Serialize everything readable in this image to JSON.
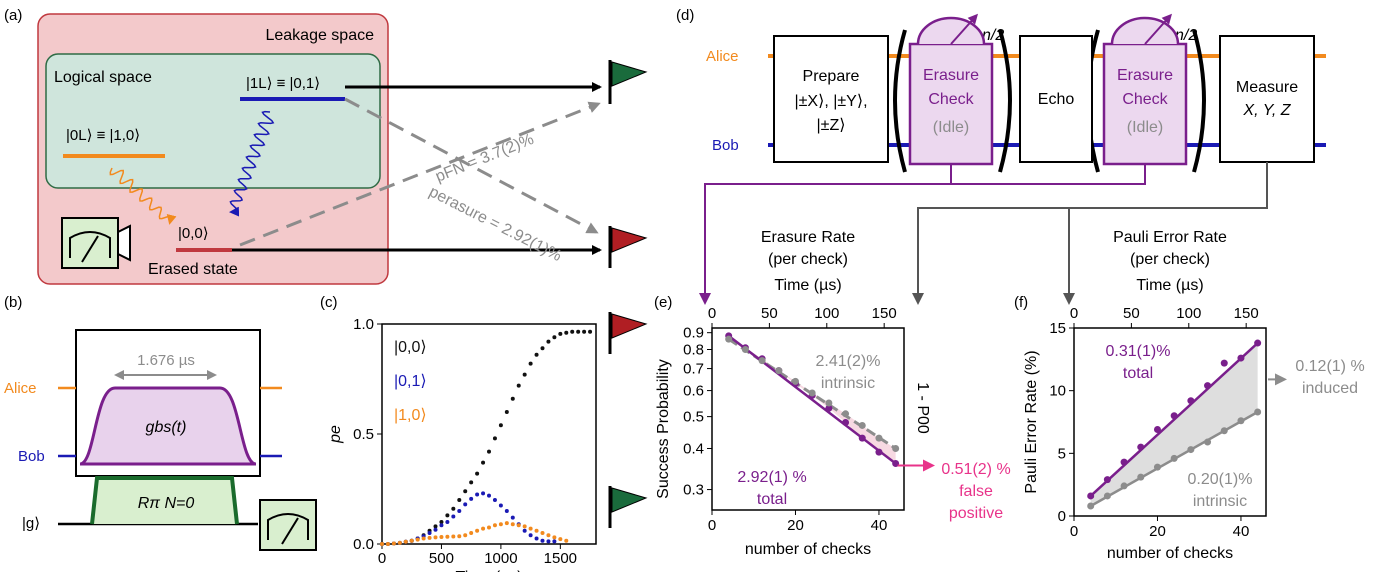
{
  "panel_labels": {
    "a": "(a)",
    "b": "(b)",
    "c": "(c)",
    "d": "(d)",
    "e": "(e)",
    "f": "(f)"
  },
  "colors": {
    "alice": "#f28a1e",
    "bob": "#1a1ab4",
    "purple": "#7a1f8c",
    "gray": "#8c8c8c",
    "red_flag": "#b01e23",
    "green_flag": "#1a6b3c",
    "pink": "#e8338a",
    "leak_bg": "#f3c9cb",
    "leak_border": "#c0393f",
    "logic_bg": "#cfe5dc",
    "logic_border": "#2f6b45",
    "green_box": "#d9efcf"
  },
  "panel_a": {
    "leakage_label": "Leakage space",
    "logical_label": "Logical space",
    "state_1L": "|1L⟩ ≡ |0,1⟩",
    "state_0L": "|0L⟩ ≡ |1,0⟩",
    "state_00": "|0,0⟩",
    "erased_label": "Erased state",
    "p_fn": "pFN = 3.7(2)%",
    "p_erasure": "perasure = 2.92(1)%"
  },
  "panel_b": {
    "duration": "1.676 µs",
    "alice": "Alice",
    "bob": "Bob",
    "gbs": "gbs(t)",
    "rpi": "Rπ N=0",
    "ground": "|g⟩"
  },
  "panel_d": {
    "alice": "Alice",
    "bob": "Bob",
    "prepare": [
      "Prepare",
      "|±X⟩, |±Y⟩,",
      "|±Z⟩"
    ],
    "erasure_check": [
      "Erasure",
      "Check",
      "(Idle)"
    ],
    "echo": "Echo",
    "measure": [
      "Measure",
      "X, Y, Z"
    ],
    "n_half": "n/2"
  },
  "chart_data": [
    {
      "id": "c",
      "type": "scatter",
      "xlabel": "Time (ns)",
      "ylabel": "pe",
      "xlim": [
        0,
        1800
      ],
      "ylim": [
        0,
        1
      ],
      "xticks": [
        0,
        500,
        1000,
        1500
      ],
      "yticks": [
        0,
        0.5,
        1
      ],
      "ytick_labels": [
        "0.0",
        "0.5",
        "1.0"
      ],
      "series": [
        {
          "name": "|0,0⟩",
          "color": "#111111",
          "points": [
            [
              0,
              0.0
            ],
            [
              50,
              0.0
            ],
            [
              100,
              0.002
            ],
            [
              150,
              0.005
            ],
            [
              200,
              0.01
            ],
            [
              250,
              0.015
            ],
            [
              300,
              0.025
            ],
            [
              350,
              0.04
            ],
            [
              400,
              0.06
            ],
            [
              450,
              0.08
            ],
            [
              500,
              0.1
            ],
            [
              550,
              0.13
            ],
            [
              600,
              0.16
            ],
            [
              650,
              0.2
            ],
            [
              700,
              0.24
            ],
            [
              750,
              0.28
            ],
            [
              800,
              0.32
            ],
            [
              850,
              0.37
            ],
            [
              900,
              0.42
            ],
            [
              950,
              0.48
            ],
            [
              1000,
              0.54
            ],
            [
              1050,
              0.6
            ],
            [
              1100,
              0.66
            ],
            [
              1150,
              0.72
            ],
            [
              1200,
              0.77
            ],
            [
              1250,
              0.82
            ],
            [
              1300,
              0.86
            ],
            [
              1350,
              0.89
            ],
            [
              1400,
              0.92
            ],
            [
              1450,
              0.94
            ],
            [
              1500,
              0.955
            ],
            [
              1550,
              0.96
            ],
            [
              1600,
              0.965
            ],
            [
              1650,
              0.965
            ],
            [
              1700,
              0.965
            ],
            [
              1750,
              0.965
            ]
          ]
        },
        {
          "name": "|0,1⟩",
          "color": "#1a1ab4",
          "points": [
            [
              0,
              0.0
            ],
            [
              50,
              0.0
            ],
            [
              100,
              0.002
            ],
            [
              150,
              0.005
            ],
            [
              200,
              0.01
            ],
            [
              250,
              0.015
            ],
            [
              300,
              0.025
            ],
            [
              350,
              0.035
            ],
            [
              400,
              0.05
            ],
            [
              450,
              0.065
            ],
            [
              500,
              0.085
            ],
            [
              550,
              0.1
            ],
            [
              600,
              0.125
            ],
            [
              650,
              0.15
            ],
            [
              700,
              0.18
            ],
            [
              750,
              0.205
            ],
            [
              800,
              0.225
            ],
            [
              850,
              0.23
            ],
            [
              900,
              0.22
            ],
            [
              950,
              0.2
            ],
            [
              1000,
              0.175
            ],
            [
              1050,
              0.15
            ],
            [
              1100,
              0.12
            ],
            [
              1150,
              0.09
            ],
            [
              1200,
              0.06
            ],
            [
              1250,
              0.04
            ],
            [
              1300,
              0.025
            ],
            [
              1350,
              0.015
            ],
            [
              1400,
              0.012
            ],
            [
              1450,
              0.012
            ]
          ]
        },
        {
          "name": "|1,0⟩",
          "color": "#f28a1e",
          "points": [
            [
              0,
              0.0
            ],
            [
              50,
              0.0
            ],
            [
              100,
              0.002
            ],
            [
              150,
              0.005
            ],
            [
              200,
              0.01
            ],
            [
              250,
              0.015
            ],
            [
              300,
              0.02
            ],
            [
              350,
              0.025
            ],
            [
              400,
              0.028
            ],
            [
              450,
              0.03
            ],
            [
              500,
              0.032
            ],
            [
              550,
              0.033
            ],
            [
              600,
              0.034
            ],
            [
              650,
              0.035
            ],
            [
              700,
              0.04
            ],
            [
              750,
              0.05
            ],
            [
              800,
              0.06
            ],
            [
              850,
              0.07
            ],
            [
              900,
              0.075
            ],
            [
              950,
              0.085
            ],
            [
              1000,
              0.09
            ],
            [
              1050,
              0.095
            ],
            [
              1100,
              0.09
            ],
            [
              1150,
              0.085
            ],
            [
              1200,
              0.08
            ],
            [
              1250,
              0.07
            ],
            [
              1300,
              0.06
            ],
            [
              1350,
              0.05
            ],
            [
              1400,
              0.04
            ],
            [
              1450,
              0.03
            ],
            [
              1500,
              0.022
            ],
            [
              1550,
              0.015
            ]
          ]
        }
      ]
    },
    {
      "id": "e",
      "type": "scatter",
      "yscale": "log",
      "title": "Erasure Rate",
      "subtitle": "(per check)",
      "xlabel": "number of checks",
      "ylabel": "Success Probability",
      "x2label": "Time (µs)",
      "y2label": "1 - P00",
      "xlim": [
        0,
        46
      ],
      "ylim": [
        0.26,
        0.93
      ],
      "xticks": [
        0,
        20,
        40
      ],
      "x2ticks": [
        0,
        50,
        100,
        150
      ],
      "yticks": [
        0.3,
        0.4,
        0.5,
        0.6,
        0.7,
        0.8,
        0.9
      ],
      "series": [
        {
          "name": "total",
          "color": "#7a1f8c",
          "x": [
            4,
            8,
            12,
            16,
            20,
            24,
            28,
            32,
            36,
            40,
            44
          ],
          "y": [
            0.88,
            0.81,
            0.75,
            0.69,
            0.63,
            0.58,
            0.53,
            0.48,
            0.43,
            0.39,
            0.36
          ]
        },
        {
          "name": "intrinsic",
          "color": "#8c8c8c",
          "x": [
            4,
            8,
            12,
            16,
            20,
            24,
            28,
            32,
            36,
            40,
            44
          ],
          "y": [
            0.86,
            0.8,
            0.74,
            0.69,
            0.64,
            0.59,
            0.55,
            0.51,
            0.47,
            0.43,
            0.4
          ]
        }
      ],
      "annotations": {
        "intrinsic": [
          "2.41(2)%",
          "intrinsic"
        ],
        "total": [
          "2.92(1) %",
          "total"
        ],
        "false_positive": [
          "0.51(2) %",
          "false",
          "positive"
        ]
      }
    },
    {
      "id": "f",
      "type": "scatter",
      "title": "Pauli Error Rate",
      "subtitle": "(per check)",
      "xlabel": "number of checks",
      "ylabel": "Pauli Error Rate (%)",
      "x2label": "Time (µs)",
      "xlim": [
        0,
        46
      ],
      "ylim": [
        0,
        15
      ],
      "xticks": [
        0,
        20,
        40
      ],
      "x2ticks": [
        0,
        50,
        100,
        150
      ],
      "yticks": [
        0,
        5,
        10,
        15
      ],
      "series": [
        {
          "name": "total",
          "color": "#7a1f8c",
          "x": [
            4,
            8,
            12,
            16,
            20,
            24,
            28,
            32,
            36,
            40,
            44
          ],
          "y": [
            1.6,
            2.9,
            4.3,
            5.5,
            6.9,
            8.0,
            9.2,
            10.4,
            12.2,
            12.6,
            13.8
          ]
        },
        {
          "name": "intrinsic",
          "color": "#8c8c8c",
          "x": [
            4,
            8,
            12,
            16,
            20,
            24,
            28,
            32,
            36,
            40,
            44
          ],
          "y": [
            0.8,
            1.6,
            2.4,
            3.1,
            3.9,
            4.6,
            5.3,
            5.9,
            6.8,
            7.6,
            8.3
          ]
        }
      ],
      "annotations": {
        "total": [
          "0.31(1)%",
          "total"
        ],
        "intrinsic": [
          "0.20(1)%",
          "intrinsic"
        ],
        "induced": [
          "0.12(1) %",
          "induced"
        ]
      }
    }
  ]
}
